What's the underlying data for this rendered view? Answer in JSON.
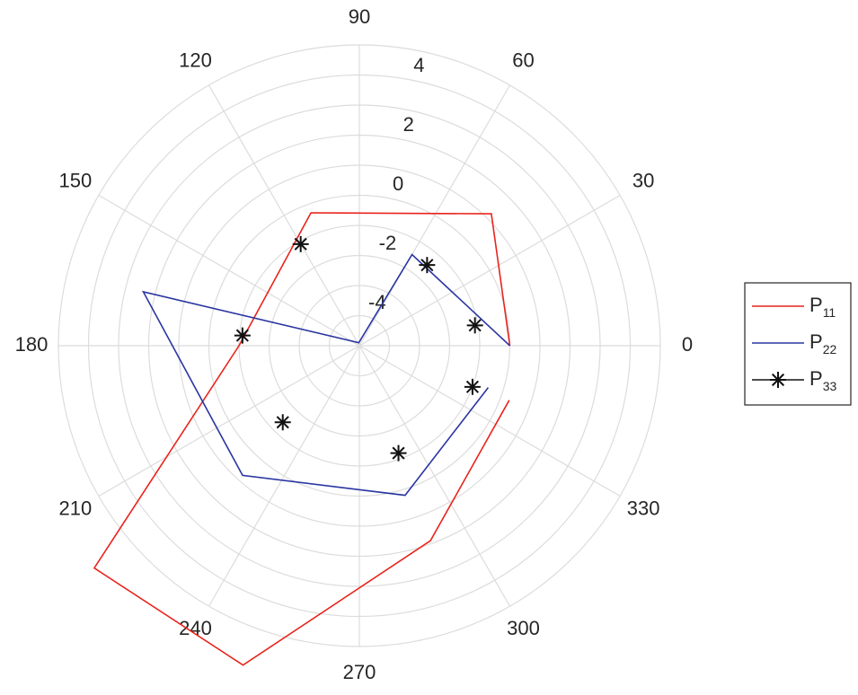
{
  "chart_data": {
    "type": "polar",
    "angle_unit": "degrees",
    "angle_ticks": [
      0,
      30,
      60,
      90,
      120,
      150,
      180,
      210,
      240,
      270,
      300,
      330
    ],
    "radial_ticks": [
      -4,
      -2,
      0,
      2,
      4
    ],
    "rlim": [
      -5,
      5
    ],
    "grid": true,
    "legend": {
      "placement": "right"
    },
    "series": [
      {
        "name": "P",
        "subscript": "11",
        "color": "#e8241c",
        "style": "line",
        "points": [
          {
            "theta": 0,
            "r": 0
          },
          {
            "theta": 45,
            "r": 1.2
          },
          {
            "theta": 110,
            "r": -0.3
          },
          {
            "theta": 180,
            "r": -1
          },
          {
            "theta": 220,
            "r": 6.5
          },
          {
            "theta": 250,
            "r": 6.3
          },
          {
            "theta": 290,
            "r": 1.9
          },
          {
            "theta": 340,
            "r": 0.3
          }
        ]
      },
      {
        "name": "P",
        "subscript": "22",
        "color": "#2a35a1",
        "style": "line",
        "points": [
          {
            "theta": 0,
            "r": 0
          },
          {
            "theta": 60,
            "r": -1.5
          },
          {
            "theta": 100,
            "r": -4.9
          },
          {
            "theta": 166,
            "r": 2.4
          },
          {
            "theta": 228,
            "r": 0.8
          },
          {
            "theta": 287,
            "r": 0.2
          },
          {
            "theta": 342,
            "r": -0.5
          }
        ]
      },
      {
        "name": "P",
        "subscript": "33",
        "color": "#111111",
        "style": "marker",
        "points": [
          {
            "theta": 10,
            "r": -1.1
          },
          {
            "theta": 50,
            "r": -1.5
          },
          {
            "theta": 120,
            "r": -1.1
          },
          {
            "theta": 175,
            "r": -1.1
          },
          {
            "theta": 225,
            "r": -1.4
          },
          {
            "theta": 290,
            "r": -1.2
          },
          {
            "theta": 340,
            "r": -1
          }
        ]
      }
    ]
  }
}
